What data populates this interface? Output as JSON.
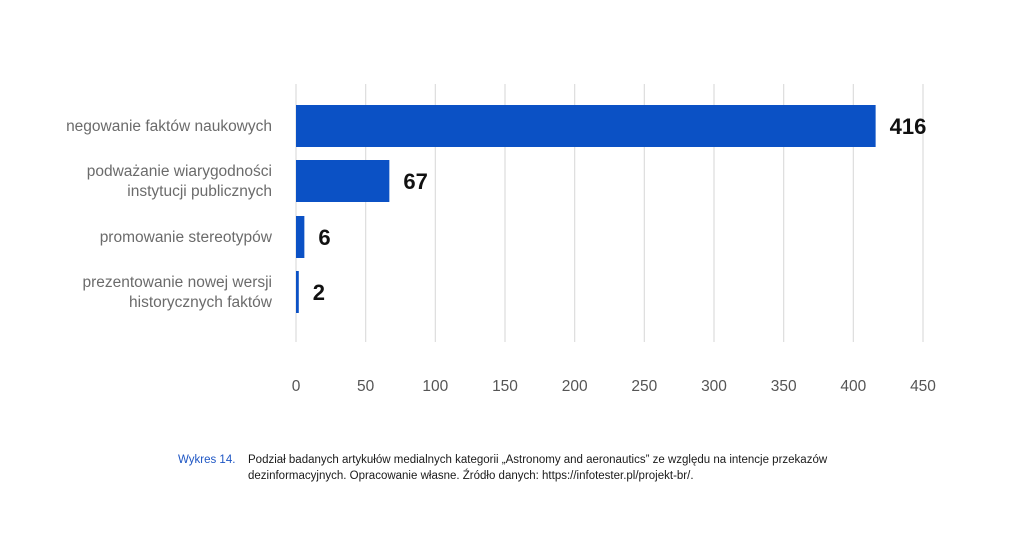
{
  "chart_data": {
    "type": "bar",
    "orientation": "horizontal",
    "categories": [
      [
        "negowanie faktów naukowych"
      ],
      [
        "podważanie wiarygodności",
        "instytucji publicznych"
      ],
      [
        "promowanie stereotypów"
      ],
      [
        "prezentowanie nowej wersji",
        "historycznych faktów"
      ]
    ],
    "values": [
      416,
      67,
      6,
      2
    ],
    "value_labels": [
      "416",
      "67",
      "6",
      "2"
    ],
    "xlim": [
      0,
      450
    ],
    "xticks": [
      0,
      50,
      100,
      150,
      200,
      250,
      300,
      350,
      400,
      450
    ],
    "grid": "vertical",
    "bar_color": "#0b51c5",
    "grid_color": "#dddddd"
  },
  "caption": {
    "number": "Wykres 14.",
    "text": "Podział badanych artykułów medialnych kategorii „Astronomy and aeronautics” ze względu na intencje przekazów dezinformacyjnych. Opracowanie własne. Źródło danych: https://infotester.pl/projekt-br/."
  }
}
